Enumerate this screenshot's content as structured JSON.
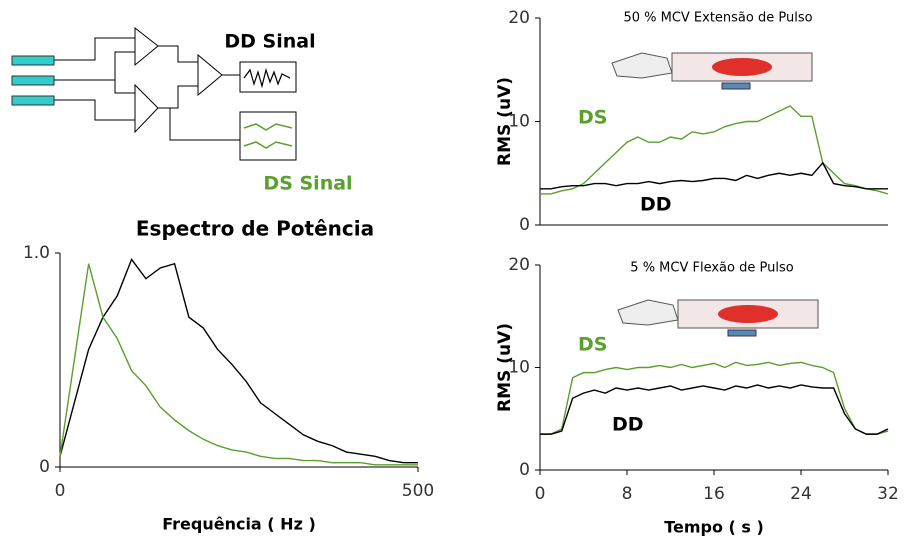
{
  "diagram": {
    "labels": [
      "DD Sinal",
      "DS Sinal"
    ]
  },
  "chart_data": [
    {
      "type": "line",
      "title": "Espectro de Potência",
      "x_label": "Frequência ( Hz )",
      "xlim": [
        0,
        500
      ],
      "ylim": [
        0,
        1
      ],
      "xticks": [
        0,
        500
      ],
      "yticks": [
        0,
        {
          "value": 1,
          "label": "1.0"
        }
      ],
      "x": [
        0,
        20,
        40,
        60,
        80,
        100,
        120,
        140,
        160,
        180,
        200,
        220,
        240,
        260,
        280,
        300,
        320,
        340,
        360,
        380,
        400,
        420,
        440,
        460,
        480,
        500
      ],
      "series": [
        {
          "color": "#000000",
          "values": [
            0.05,
            0.3,
            0.55,
            0.7,
            0.8,
            0.97,
            0.88,
            0.93,
            0.95,
            0.7,
            0.65,
            0.55,
            0.48,
            0.4,
            0.3,
            0.25,
            0.2,
            0.15,
            0.12,
            0.1,
            0.07,
            0.06,
            0.05,
            0.03,
            0.02,
            0.02
          ]
        },
        {
          "color": "#5aa02c",
          "values": [
            0.05,
            0.5,
            0.95,
            0.7,
            0.6,
            0.45,
            0.38,
            0.28,
            0.22,
            0.17,
            0.13,
            0.1,
            0.08,
            0.07,
            0.05,
            0.04,
            0.04,
            0.03,
            0.03,
            0.02,
            0.02,
            0.02,
            0.01,
            0.01,
            0.01,
            0.01
          ]
        }
      ]
    },
    {
      "type": "line",
      "title": "50 % MCV Extensão de Pulso",
      "y_label": "RMS (uV)",
      "xlim": [
        0,
        32
      ],
      "ylim": [
        0,
        20
      ],
      "yticks": [
        0,
        10,
        20
      ],
      "annotations": [
        {
          "text": "DS",
          "color": "#5aa02c"
        },
        {
          "text": "DD",
          "color": "#000000"
        }
      ],
      "x": [
        0,
        1,
        2,
        3,
        4,
        5,
        6,
        7,
        8,
        9,
        10,
        11,
        12,
        13,
        14,
        15,
        16,
        17,
        18,
        19,
        20,
        21,
        22,
        23,
        24,
        25,
        26,
        27,
        28,
        29,
        30,
        31,
        32
      ],
      "series": [
        {
          "color": "#5aa02c",
          "values": [
            3,
            3,
            3.3,
            3.5,
            4,
            5,
            6,
            7,
            8,
            8.5,
            8,
            8,
            8.5,
            8.3,
            9,
            8.8,
            9,
            9.5,
            9.8,
            10,
            10,
            10.5,
            11,
            11.5,
            10.5,
            10.5,
            6,
            5,
            4,
            3.8,
            3.5,
            3.3,
            3
          ]
        },
        {
          "color": "#000000",
          "values": [
            3.5,
            3.5,
            3.7,
            3.8,
            3.8,
            4,
            4,
            3.8,
            4,
            4,
            4.2,
            4,
            4.2,
            4.3,
            4.2,
            4.3,
            4.5,
            4.5,
            4.3,
            4.8,
            4.5,
            4.8,
            5,
            4.8,
            5,
            4.8,
            6,
            4,
            3.8,
            3.7,
            3.5,
            3.5,
            3.5
          ]
        }
      ]
    },
    {
      "type": "line",
      "title": "5 % MCV Flexão de Pulso",
      "y_label": "RMS (uV)",
      "x_label": "Tempo ( s )",
      "xlim": [
        0,
        32
      ],
      "ylim": [
        0,
        20
      ],
      "yticks": [
        0,
        10,
        20
      ],
      "xticks": [
        0,
        8,
        16,
        24,
        32
      ],
      "annotations": [
        {
          "text": "DS",
          "color": "#5aa02c"
        },
        {
          "text": "DD",
          "color": "#000000"
        }
      ],
      "x": [
        0,
        1,
        2,
        3,
        4,
        5,
        6,
        7,
        8,
        9,
        10,
        11,
        12,
        13,
        14,
        15,
        16,
        17,
        18,
        19,
        20,
        21,
        22,
        23,
        24,
        25,
        26,
        27,
        28,
        29,
        30,
        31,
        32
      ],
      "series": [
        {
          "color": "#5aa02c",
          "values": [
            3.5,
            3.5,
            4,
            9,
            9.5,
            9.5,
            9.8,
            10,
            9.8,
            10,
            10,
            10.2,
            10,
            10.3,
            10,
            10.2,
            10.4,
            10,
            10.5,
            10.2,
            10.3,
            10.5,
            10.2,
            10.4,
            10.5,
            10.2,
            10,
            9.5,
            6,
            4,
            3.5,
            3.5,
            3.8
          ]
        },
        {
          "color": "#000000",
          "values": [
            3.5,
            3.5,
            3.8,
            7,
            7.5,
            7.8,
            7.5,
            8,
            7.8,
            8,
            7.8,
            8,
            8.2,
            7.8,
            8,
            8.2,
            8,
            7.8,
            8.2,
            8,
            8.3,
            8,
            8.2,
            8,
            8.3,
            8.1,
            8,
            8,
            5.5,
            4,
            3.5,
            3.5,
            4
          ]
        }
      ]
    }
  ]
}
